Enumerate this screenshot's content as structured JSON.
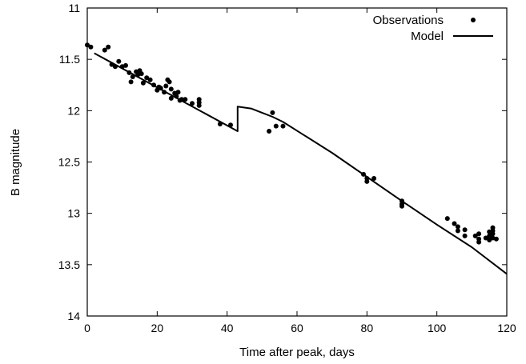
{
  "chart_data": {
    "type": "scatter",
    "xlabel": "Time after peak, days",
    "ylabel": "B magnitude",
    "xlim": [
      0,
      120
    ],
    "ylim": [
      11,
      14
    ],
    "y_inverted": true,
    "xticks": [
      "0",
      "20",
      "40",
      "60",
      "80",
      "100",
      "120"
    ],
    "yticks": [
      "11",
      "11.5",
      "12",
      "12.5",
      "13",
      "13.5",
      "14"
    ],
    "grid": false,
    "legend_position": "top-right",
    "series": [
      {
        "name": "Observations",
        "style": "points",
        "points": [
          [
            0,
            11.36
          ],
          [
            1,
            11.38
          ],
          [
            5,
            11.41
          ],
          [
            6,
            11.38
          ],
          [
            7,
            11.55
          ],
          [
            8,
            11.57
          ],
          [
            9,
            11.52
          ],
          [
            10,
            11.57
          ],
          [
            11,
            11.56
          ],
          [
            12,
            11.63
          ],
          [
            12.5,
            11.72
          ],
          [
            13,
            11.67
          ],
          [
            14,
            11.62
          ],
          [
            14.5,
            11.65
          ],
          [
            15,
            11.61
          ],
          [
            15.5,
            11.64
          ],
          [
            16,
            11.73
          ],
          [
            17,
            11.68
          ],
          [
            18,
            11.7
          ],
          [
            19,
            11.75
          ],
          [
            20,
            11.8
          ],
          [
            20.5,
            11.77
          ],
          [
            21,
            11.78
          ],
          [
            22,
            11.82
          ],
          [
            22.5,
            11.76
          ],
          [
            23,
            11.7
          ],
          [
            23.5,
            11.72
          ],
          [
            24,
            11.79
          ],
          [
            24,
            11.88
          ],
          [
            25,
            11.83
          ],
          [
            25.5,
            11.86
          ],
          [
            26,
            11.82
          ],
          [
            26.5,
            11.9
          ],
          [
            27,
            11.89
          ],
          [
            28,
            11.89
          ],
          [
            30,
            11.93
          ],
          [
            32,
            11.89
          ],
          [
            32,
            11.92
          ],
          [
            32,
            11.95
          ],
          [
            38,
            12.13
          ],
          [
            41,
            12.14
          ],
          [
            52,
            12.2
          ],
          [
            53,
            12.02
          ],
          [
            54,
            12.15
          ],
          [
            56,
            12.15
          ],
          [
            79,
            12.62
          ],
          [
            80,
            12.66
          ],
          [
            80,
            12.69
          ],
          [
            82,
            12.66
          ],
          [
            90,
            12.88
          ],
          [
            90,
            12.91
          ],
          [
            90,
            12.93
          ],
          [
            103,
            13.05
          ],
          [
            105,
            13.1
          ],
          [
            106,
            13.13
          ],
          [
            106,
            13.17
          ],
          [
            108,
            13.16
          ],
          [
            108,
            13.22
          ],
          [
            111,
            13.22
          ],
          [
            112,
            13.2
          ],
          [
            112,
            13.25
          ],
          [
            112,
            13.28
          ],
          [
            114,
            13.24
          ],
          [
            115,
            13.18
          ],
          [
            115,
            13.22
          ],
          [
            115,
            13.26
          ],
          [
            116,
            13.14
          ],
          [
            116,
            13.17
          ],
          [
            116,
            13.2
          ],
          [
            116,
            13.24
          ],
          [
            117,
            13.25
          ]
        ]
      },
      {
        "name": "Model",
        "style": "line",
        "points": [
          [
            2,
            11.44
          ],
          [
            43,
            12.2
          ],
          [
            43,
            11.96
          ],
          [
            45,
            11.97
          ],
          [
            47,
            11.98
          ],
          [
            50,
            12.02
          ],
          [
            53,
            12.06
          ],
          [
            56,
            12.11
          ],
          [
            70,
            12.41
          ],
          [
            90,
            12.88
          ],
          [
            100,
            13.11
          ],
          [
            110,
            13.33
          ],
          [
            120,
            13.59
          ]
        ]
      }
    ]
  }
}
